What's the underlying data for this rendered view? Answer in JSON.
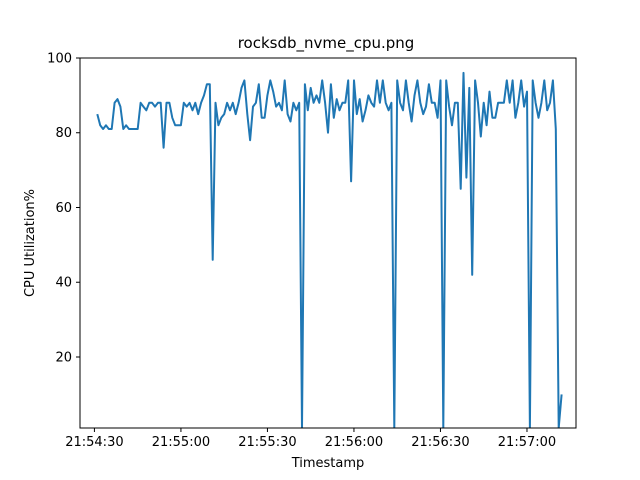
{
  "chart_data": {
    "type": "line",
    "title": "rocksdb_nvme_cpu.png",
    "xlabel": "Timestamp",
    "ylabel": "CPU Utilization%",
    "ylim": [
      1,
      100
    ],
    "xlim": [
      "21:54:25",
      "21:57:17"
    ],
    "grid": false,
    "legend": "none",
    "line_color": "#1f77b4",
    "x_ticks": [
      "21:54:30",
      "21:55:00",
      "21:55:30",
      "21:56:00",
      "21:56:30",
      "21:57:00"
    ],
    "y_ticks": [
      20,
      40,
      60,
      80,
      100
    ],
    "series": [
      {
        "x": [
          "21:54:31",
          "21:54:32",
          "21:54:33",
          "21:54:34",
          "21:54:35",
          "21:54:36",
          "21:54:37",
          "21:54:38",
          "21:54:39",
          "21:54:40",
          "21:54:41",
          "21:54:42",
          "21:54:43",
          "21:54:44",
          "21:54:45",
          "21:54:46",
          "21:54:47",
          "21:54:48",
          "21:54:49",
          "21:54:50",
          "21:54:51",
          "21:54:52",
          "21:54:53",
          "21:54:54",
          "21:54:55",
          "21:54:56",
          "21:54:57",
          "21:54:58",
          "21:54:59",
          "21:55:00",
          "21:55:01",
          "21:55:02",
          "21:55:03",
          "21:55:04",
          "21:55:05",
          "21:55:06",
          "21:55:07",
          "21:55:08",
          "21:55:09",
          "21:55:10",
          "21:55:11",
          "21:55:12",
          "21:55:13",
          "21:55:14",
          "21:55:15",
          "21:55:16",
          "21:55:17",
          "21:55:18",
          "21:55:19",
          "21:55:20",
          "21:55:21",
          "21:55:22",
          "21:55:23",
          "21:55:24",
          "21:55:25",
          "21:55:26",
          "21:55:27",
          "21:55:28",
          "21:55:29",
          "21:55:30",
          "21:55:31",
          "21:55:32",
          "21:55:33",
          "21:55:34",
          "21:55:35",
          "21:55:36",
          "21:55:37",
          "21:55:38",
          "21:55:39",
          "21:55:40",
          "21:55:41",
          "21:55:42",
          "21:55:43",
          "21:55:44",
          "21:55:45",
          "21:55:46",
          "21:55:47",
          "21:55:48",
          "21:55:49",
          "21:55:50",
          "21:55:51",
          "21:55:52",
          "21:55:53",
          "21:55:54",
          "21:55:55",
          "21:55:56",
          "21:55:57",
          "21:55:58",
          "21:55:59",
          "21:56:00",
          "21:56:01",
          "21:56:02",
          "21:56:03",
          "21:56:04",
          "21:56:05",
          "21:56:06",
          "21:56:07",
          "21:56:08",
          "21:56:09",
          "21:56:10",
          "21:56:11",
          "21:56:12",
          "21:56:13",
          "21:56:14",
          "21:56:15",
          "21:56:16",
          "21:56:17",
          "21:56:18",
          "21:56:19",
          "21:56:20",
          "21:56:21",
          "21:56:22",
          "21:56:23",
          "21:56:24",
          "21:56:25",
          "21:56:26",
          "21:56:27",
          "21:56:28",
          "21:56:29",
          "21:56:30",
          "21:56:31",
          "21:56:32",
          "21:56:33",
          "21:56:34",
          "21:56:35",
          "21:56:36",
          "21:56:37",
          "21:56:38",
          "21:56:39",
          "21:56:40",
          "21:56:41",
          "21:56:42",
          "21:56:43",
          "21:56:44",
          "21:56:45",
          "21:56:46",
          "21:56:47",
          "21:56:48",
          "21:56:49",
          "21:56:50",
          "21:56:51",
          "21:56:52",
          "21:56:53",
          "21:56:54",
          "21:56:55",
          "21:56:56",
          "21:56:57",
          "21:56:58",
          "21:56:59",
          "21:57:00",
          "21:57:01",
          "21:57:02",
          "21:57:03",
          "21:57:04",
          "21:57:05",
          "21:57:06",
          "21:57:07",
          "21:57:08",
          "21:57:09",
          "21:57:10",
          "21:57:11",
          "21:57:12"
        ],
        "y": [
          85,
          82,
          81,
          82,
          81,
          81,
          88,
          89,
          87,
          81,
          82,
          81,
          81,
          81,
          81,
          88,
          87,
          86,
          88,
          88,
          87,
          88,
          88,
          76,
          88,
          88,
          84,
          82,
          82,
          82,
          88,
          87,
          88,
          86,
          88,
          85,
          88,
          90,
          93,
          93,
          46,
          88,
          82,
          84,
          85,
          88,
          86,
          88,
          85,
          88,
          92,
          94,
          85,
          78,
          87,
          88,
          93,
          84,
          84,
          90,
          94,
          91,
          87,
          88,
          86,
          94,
          85,
          83,
          88,
          86,
          88,
          1,
          93,
          86,
          92,
          88,
          90,
          88,
          94,
          88,
          80,
          93,
          84,
          89,
          86,
          88,
          88,
          94,
          67,
          94,
          85,
          89,
          83,
          86,
          90,
          88,
          87,
          94,
          88,
          94,
          88,
          86,
          88,
          1,
          94,
          88,
          86,
          94,
          88,
          83,
          90,
          94,
          88,
          85,
          87,
          93,
          88,
          88,
          84,
          94,
          1,
          94,
          87,
          82,
          88,
          88,
          65,
          96,
          68,
          92,
          42,
          94,
          88,
          79,
          88,
          82,
          91,
          84,
          84,
          88,
          88,
          88,
          94,
          88,
          94,
          84,
          88,
          94,
          87,
          91,
          1,
          94,
          88,
          84,
          88,
          94,
          86,
          88,
          94,
          81,
          1,
          10
        ]
      }
    ]
  }
}
